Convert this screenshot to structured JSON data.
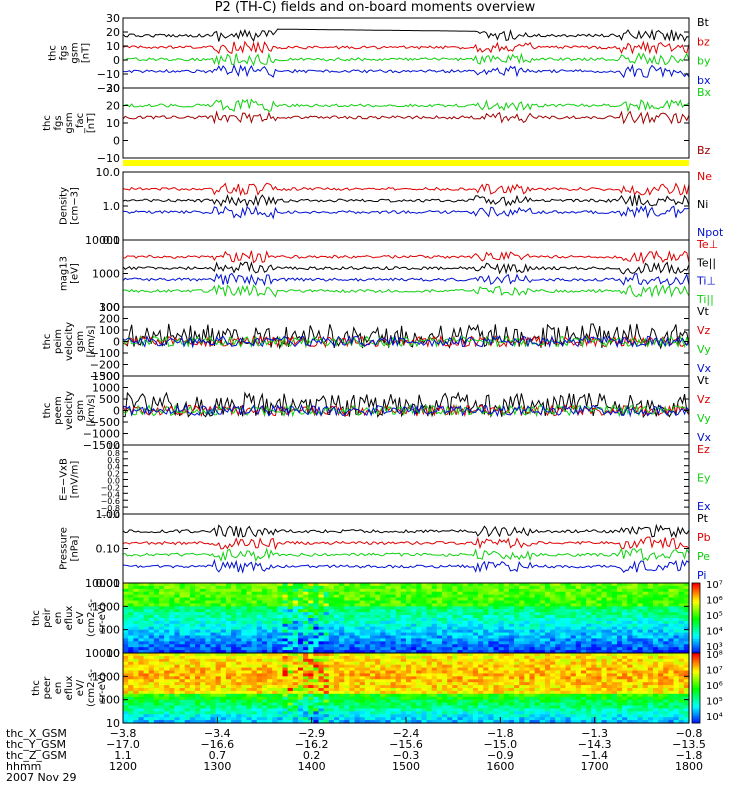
{
  "title": "P2 (TH-C) fields and on-board moments overview",
  "colors": {
    "black": "#000000",
    "red": "#e00000",
    "green": "#10d010",
    "blue": "#0010d0",
    "yellow": "#ffff00",
    "darkred": "#a00000"
  },
  "chart_data": [
    {
      "type": "line",
      "panel": "fgs-gsm",
      "ylabel": [
        "thc",
        "fgs",
        "gsm",
        "[nT]"
      ],
      "ylim": [
        -20,
        30
      ],
      "yticks": [
        "30",
        "20",
        "10",
        "0",
        "−10",
        "−20"
      ],
      "legend": [
        "Bt",
        "bz",
        "by",
        "bx"
      ],
      "legend_colors": [
        "black",
        "red",
        "green",
        "blue"
      ]
    },
    {
      "type": "line",
      "panel": "fgs-fac",
      "ylabel": [
        "thc",
        "fgs",
        "gsm",
        "_fac",
        "[nT]"
      ],
      "ylim": [
        -15,
        30
      ],
      "yticks": [
        "30",
        "20",
        "10",
        "0",
        "−10"
      ],
      "legend": [
        "Bx",
        "Bz"
      ],
      "legend_colors": [
        "green",
        "darkred"
      ]
    },
    {
      "type": "line",
      "panel": "density",
      "ylabel": [
        "Density",
        "[cm−3]"
      ],
      "ylim": [
        0.1,
        10
      ],
      "log": true,
      "yticks": [
        "10.0",
        "1.0",
        "0.1"
      ],
      "legend": [
        "Ne",
        "Ni",
        "Npot"
      ],
      "legend_colors": [
        "red",
        "black",
        "blue"
      ]
    },
    {
      "type": "line",
      "panel": "temperature",
      "ylabel": [
        "mag13",
        "[eV]"
      ],
      "ylim": [
        10,
        10000
      ],
      "log": true,
      "yticks": [
        "10000",
        "1000",
        "100"
      ],
      "legend": [
        "Te⊥",
        "Te||",
        "Ti⊥",
        "Ti||"
      ],
      "legend_colors": [
        "red",
        "black",
        "blue",
        "green"
      ]
    },
    {
      "type": "line",
      "panel": "peim-velocity",
      "ylabel": [
        "thc",
        "peim",
        "velocity",
        "gsm",
        "[km/s]"
      ],
      "ylim": [
        -300,
        300
      ],
      "yticks": [
        "300",
        "200",
        "100",
        "0",
        "−100",
        "−200",
        "−300"
      ],
      "legend": [
        "Vt",
        "Vz",
        "Vy",
        "Vx"
      ],
      "legend_colors": [
        "black",
        "red",
        "green",
        "blue"
      ]
    },
    {
      "type": "line",
      "panel": "peem-velocity",
      "ylabel": [
        "thc",
        "peem",
        "velocity",
        "gsm",
        "[km/s]"
      ],
      "ylim": [
        -1500,
        1500
      ],
      "yticks": [
        "1500",
        "1000",
        "500",
        "0",
        "−500",
        "−1000",
        "−1500"
      ],
      "legend": [
        "Vt",
        "Vz",
        "Vy",
        "Vx"
      ],
      "legend_colors": [
        "black",
        "red",
        "green",
        "blue"
      ]
    },
    {
      "type": "line",
      "panel": "efield",
      "ylabel": [
        "E=−VxB",
        "[mV/m]"
      ],
      "ylim": [
        -1,
        1
      ],
      "yticks": [
        "1.0",
        "0.8",
        "0.6",
        "0.4",
        "0.2",
        "0.0",
        "−0.2",
        "−0.4",
        "−0.6",
        "−0.8",
        "−1.0"
      ],
      "legend": [
        "Ez",
        "Ey",
        "Ex"
      ],
      "legend_colors": [
        "red",
        "green",
        "blue"
      ]
    },
    {
      "type": "line",
      "panel": "pressure",
      "ylabel": [
        "Pressure",
        "[nPa]"
      ],
      "ylim": [
        0.01,
        1
      ],
      "log": true,
      "yticks": [
        "1.00",
        "0.10",
        "0.01"
      ],
      "legend": [
        "Pt",
        "Pb",
        "Pe",
        "Pi"
      ],
      "legend_colors": [
        "black",
        "red",
        "green",
        "blue"
      ]
    },
    {
      "type": "heatmap",
      "panel": "peir-eflux",
      "ylabel": [
        "thc",
        "peir",
        "en",
        "eflux",
        "eV",
        "(cm2-s-",
        "sr-eV)"
      ],
      "ylim": [
        10,
        20000
      ],
      "log": true,
      "yticks": [
        "10000",
        "1000",
        "100",
        "10"
      ],
      "colorbar": [
        "10⁷",
        "10⁶",
        "10⁵",
        "10⁴",
        "10³"
      ]
    },
    {
      "type": "heatmap",
      "panel": "peer-eflux",
      "ylabel": [
        "thc",
        "peer",
        "en",
        "eflux",
        "eV/",
        "(cm2-s-",
        "sr-eV)"
      ],
      "ylim": [
        10,
        20000
      ],
      "log": true,
      "yticks": [
        "10000",
        "1000",
        "100",
        "10"
      ],
      "colorbar": [
        "10⁸",
        "10⁷",
        "10⁶",
        "10⁵",
        "10⁴"
      ]
    }
  ],
  "xaxis": {
    "rows": [
      {
        "label": "thc_X_GSM",
        "values": [
          "−3.8",
          "−3.4",
          "−2.9",
          "−2.4",
          "−1.8",
          "−1.3",
          "−0.8"
        ]
      },
      {
        "label": "thc_Y_GSM",
        "values": [
          "−17.0",
          "−16.6",
          "−16.2",
          "−15.6",
          "−15.0",
          "−14.3",
          "−13.5"
        ]
      },
      {
        "label": "thc_Z_GSM",
        "values": [
          "1.1",
          "0.7",
          "0.2",
          "−0.3",
          "−0.9",
          "−1.4",
          "−1.8"
        ]
      },
      {
        "label": "hhmm",
        "values": [
          "1200",
          "1300",
          "1400",
          "1500",
          "1600",
          "1700",
          "1800"
        ]
      }
    ],
    "date": "2007 Nov 29"
  }
}
